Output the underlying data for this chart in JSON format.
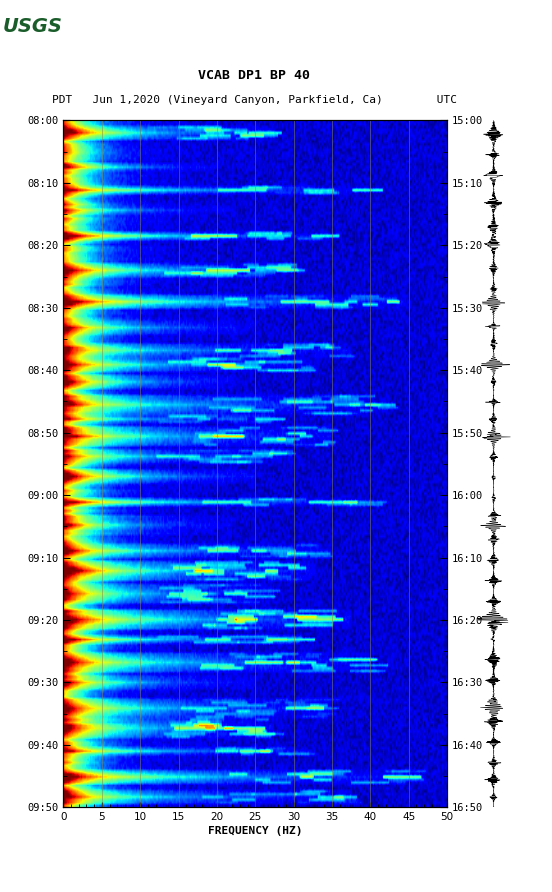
{
  "title_line1": "VCAB DP1 BP 40",
  "title_line2": "PDT   Jun 1,2020 (Vineyard Canyon, Parkfield, Ca)        UTC",
  "xlabel": "FREQUENCY (HZ)",
  "freq_min": 0,
  "freq_max": 50,
  "left_yticks": [
    "08:00",
    "08:10",
    "08:20",
    "08:30",
    "08:40",
    "08:50",
    "09:00",
    "09:10",
    "09:20",
    "09:30",
    "09:40",
    "09:50"
  ],
  "right_yticks": [
    "15:00",
    "15:10",
    "15:20",
    "15:30",
    "15:40",
    "15:50",
    "16:00",
    "16:10",
    "16:20",
    "16:30",
    "16:40",
    "16:50"
  ],
  "xticks": [
    0,
    5,
    10,
    15,
    20,
    25,
    30,
    35,
    40,
    45,
    50
  ],
  "background_color": "#ffffff",
  "colormap": "jet",
  "vline_color": "#888844",
  "vline_positions": [
    5,
    10,
    15,
    20,
    25,
    30,
    35,
    40,
    45
  ],
  "logo_color": "#1a5c2a",
  "n_freq": 300,
  "n_time": 240,
  "seed": 42,
  "event_times_frac": [
    0.02,
    0.07,
    0.1,
    0.13,
    0.17,
    0.22,
    0.265,
    0.3,
    0.335,
    0.355,
    0.38,
    0.415,
    0.435,
    0.46,
    0.49,
    0.52,
    0.555,
    0.59,
    0.625,
    0.655,
    0.69,
    0.725,
    0.755,
    0.79,
    0.82,
    0.855,
    0.885,
    0.92,
    0.955,
    0.985
  ],
  "event_freq_reach": [
    0.55,
    0.4,
    0.8,
    0.45,
    0.7,
    0.6,
    0.9,
    0.5,
    0.75,
    0.65,
    0.45,
    0.85,
    0.55,
    0.7,
    0.6,
    0.5,
    0.8,
    0.45,
    0.7,
    0.65,
    0.55,
    0.75,
    0.6,
    0.8,
    0.5,
    0.7,
    0.55,
    0.65,
    0.9,
    0.75
  ]
}
